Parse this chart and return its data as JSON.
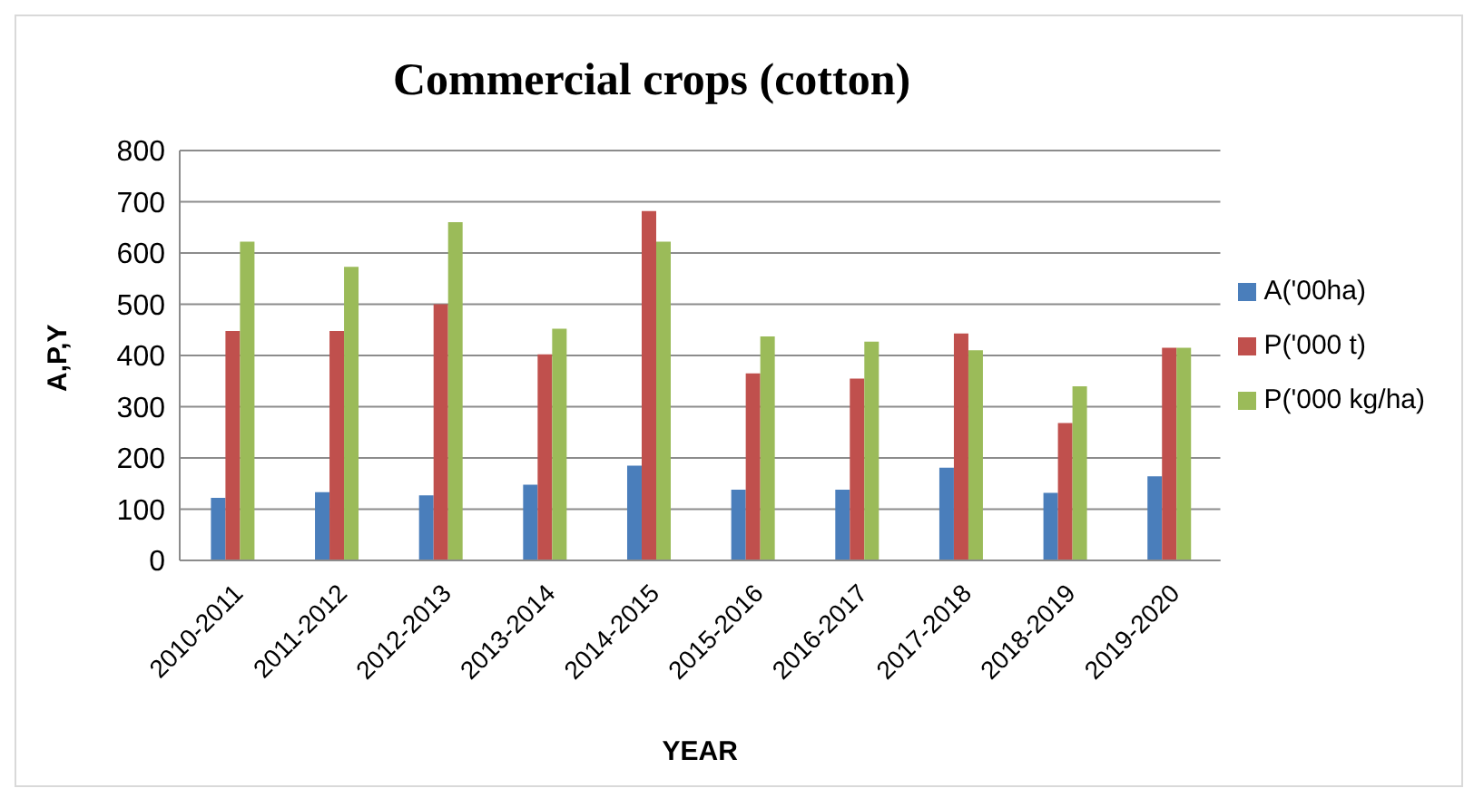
{
  "chart_data": {
    "type": "bar",
    "title": "Commercial crops (cotton)",
    "xlabel": "YEAR",
    "ylabel": "A,P,Y",
    "categories": [
      "2010-2011",
      "2011-2012",
      "2012-2013",
      "2013-2014",
      "2014-2015",
      "2015-2016",
      "2016-2017",
      "2017-2018",
      "2018-2019",
      "2019-2020"
    ],
    "series": [
      {
        "name": "A('00ha)",
        "color": "#4a7ebb",
        "values": [
          122,
          133,
          127,
          148,
          185,
          138,
          138,
          181,
          132,
          164
        ]
      },
      {
        "name": "P('000 t)",
        "color": "#c0504d",
        "values": [
          448,
          448,
          500,
          402,
          682,
          365,
          355,
          443,
          268,
          415
        ]
      },
      {
        "name": "P('000 kg/ha)",
        "color": "#9bbb59",
        "values": [
          622,
          573,
          660,
          452,
          622,
          437,
          427,
          410,
          340,
          415
        ]
      }
    ],
    "ylim": [
      0,
      800
    ],
    "yticks": [
      0,
      100,
      200,
      300,
      400,
      500,
      600,
      700,
      800
    ],
    "grid": "y",
    "legend": "right"
  }
}
